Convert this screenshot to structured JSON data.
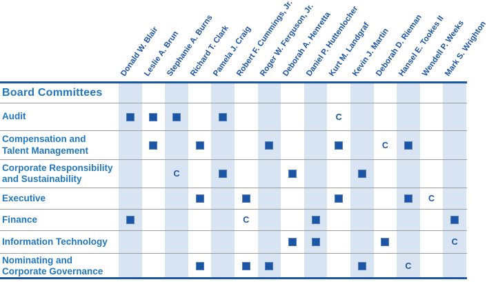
{
  "table": {
    "title": "Board Committees",
    "directors": [
      "Donald W. Blair",
      "Leslie A. Brun",
      "Stephanie A. Burns",
      "Richard T. Clark",
      "Pamela J. Craig",
      "Robert F. Cummings, Jr.",
      "Roger W. Ferguson, Jr.",
      "Deborah A. Henretta",
      "Daniel P. Huttenlocher",
      "Kurt M. Landgraf",
      "Kevin J. Martin",
      "Deborah D. Rieman",
      "Hansel E. Tookes II",
      "Wendell P. Weeks",
      "Mark S. Wrighton"
    ],
    "committees": [
      {
        "name": "Audit",
        "cells": [
          "■",
          "■",
          "■",
          "",
          "■",
          "",
          "",
          "",
          "",
          "C",
          "",
          "",
          "",
          "",
          ""
        ]
      },
      {
        "name": "Compensation and Talent Management",
        "cells": [
          "",
          "■",
          "",
          "■",
          "",
          "",
          "■",
          "",
          "",
          "■",
          "",
          "C",
          "■",
          "",
          ""
        ]
      },
      {
        "name": "Corporate Responsibility and Sustainability",
        "cells": [
          "",
          "",
          "C",
          "",
          "■",
          "",
          "",
          "■",
          "",
          "",
          "■",
          "",
          "",
          "",
          ""
        ]
      },
      {
        "name": "Executive",
        "cells": [
          "",
          "",
          "",
          "■",
          "",
          "■",
          "",
          "",
          "",
          "■",
          "",
          "",
          "■",
          "C",
          ""
        ]
      },
      {
        "name": "Finance",
        "cells": [
          "■",
          "",
          "",
          "",
          "",
          "C",
          "",
          "",
          "■",
          "",
          "",
          "",
          "",
          "",
          "■"
        ]
      },
      {
        "name": "Information Technology",
        "cells": [
          "",
          "",
          "",
          "",
          "",
          "",
          "",
          "■",
          "■",
          "",
          "",
          "■",
          "",
          "",
          "C"
        ]
      },
      {
        "name": "Nominating and Corporate Governance",
        "cells": [
          "",
          "",
          "",
          "■",
          "",
          "■",
          "■",
          "",
          "",
          "",
          "■",
          "",
          "C",
          "",
          ""
        ]
      }
    ],
    "member_symbol": "■",
    "chair_symbol": "C"
  },
  "colors": {
    "dark_blue": "#1d55a5",
    "label_blue": "#2177bd",
    "stripe_blue": "#d9e4f3",
    "separator_gray": "#9b9b9b"
  }
}
